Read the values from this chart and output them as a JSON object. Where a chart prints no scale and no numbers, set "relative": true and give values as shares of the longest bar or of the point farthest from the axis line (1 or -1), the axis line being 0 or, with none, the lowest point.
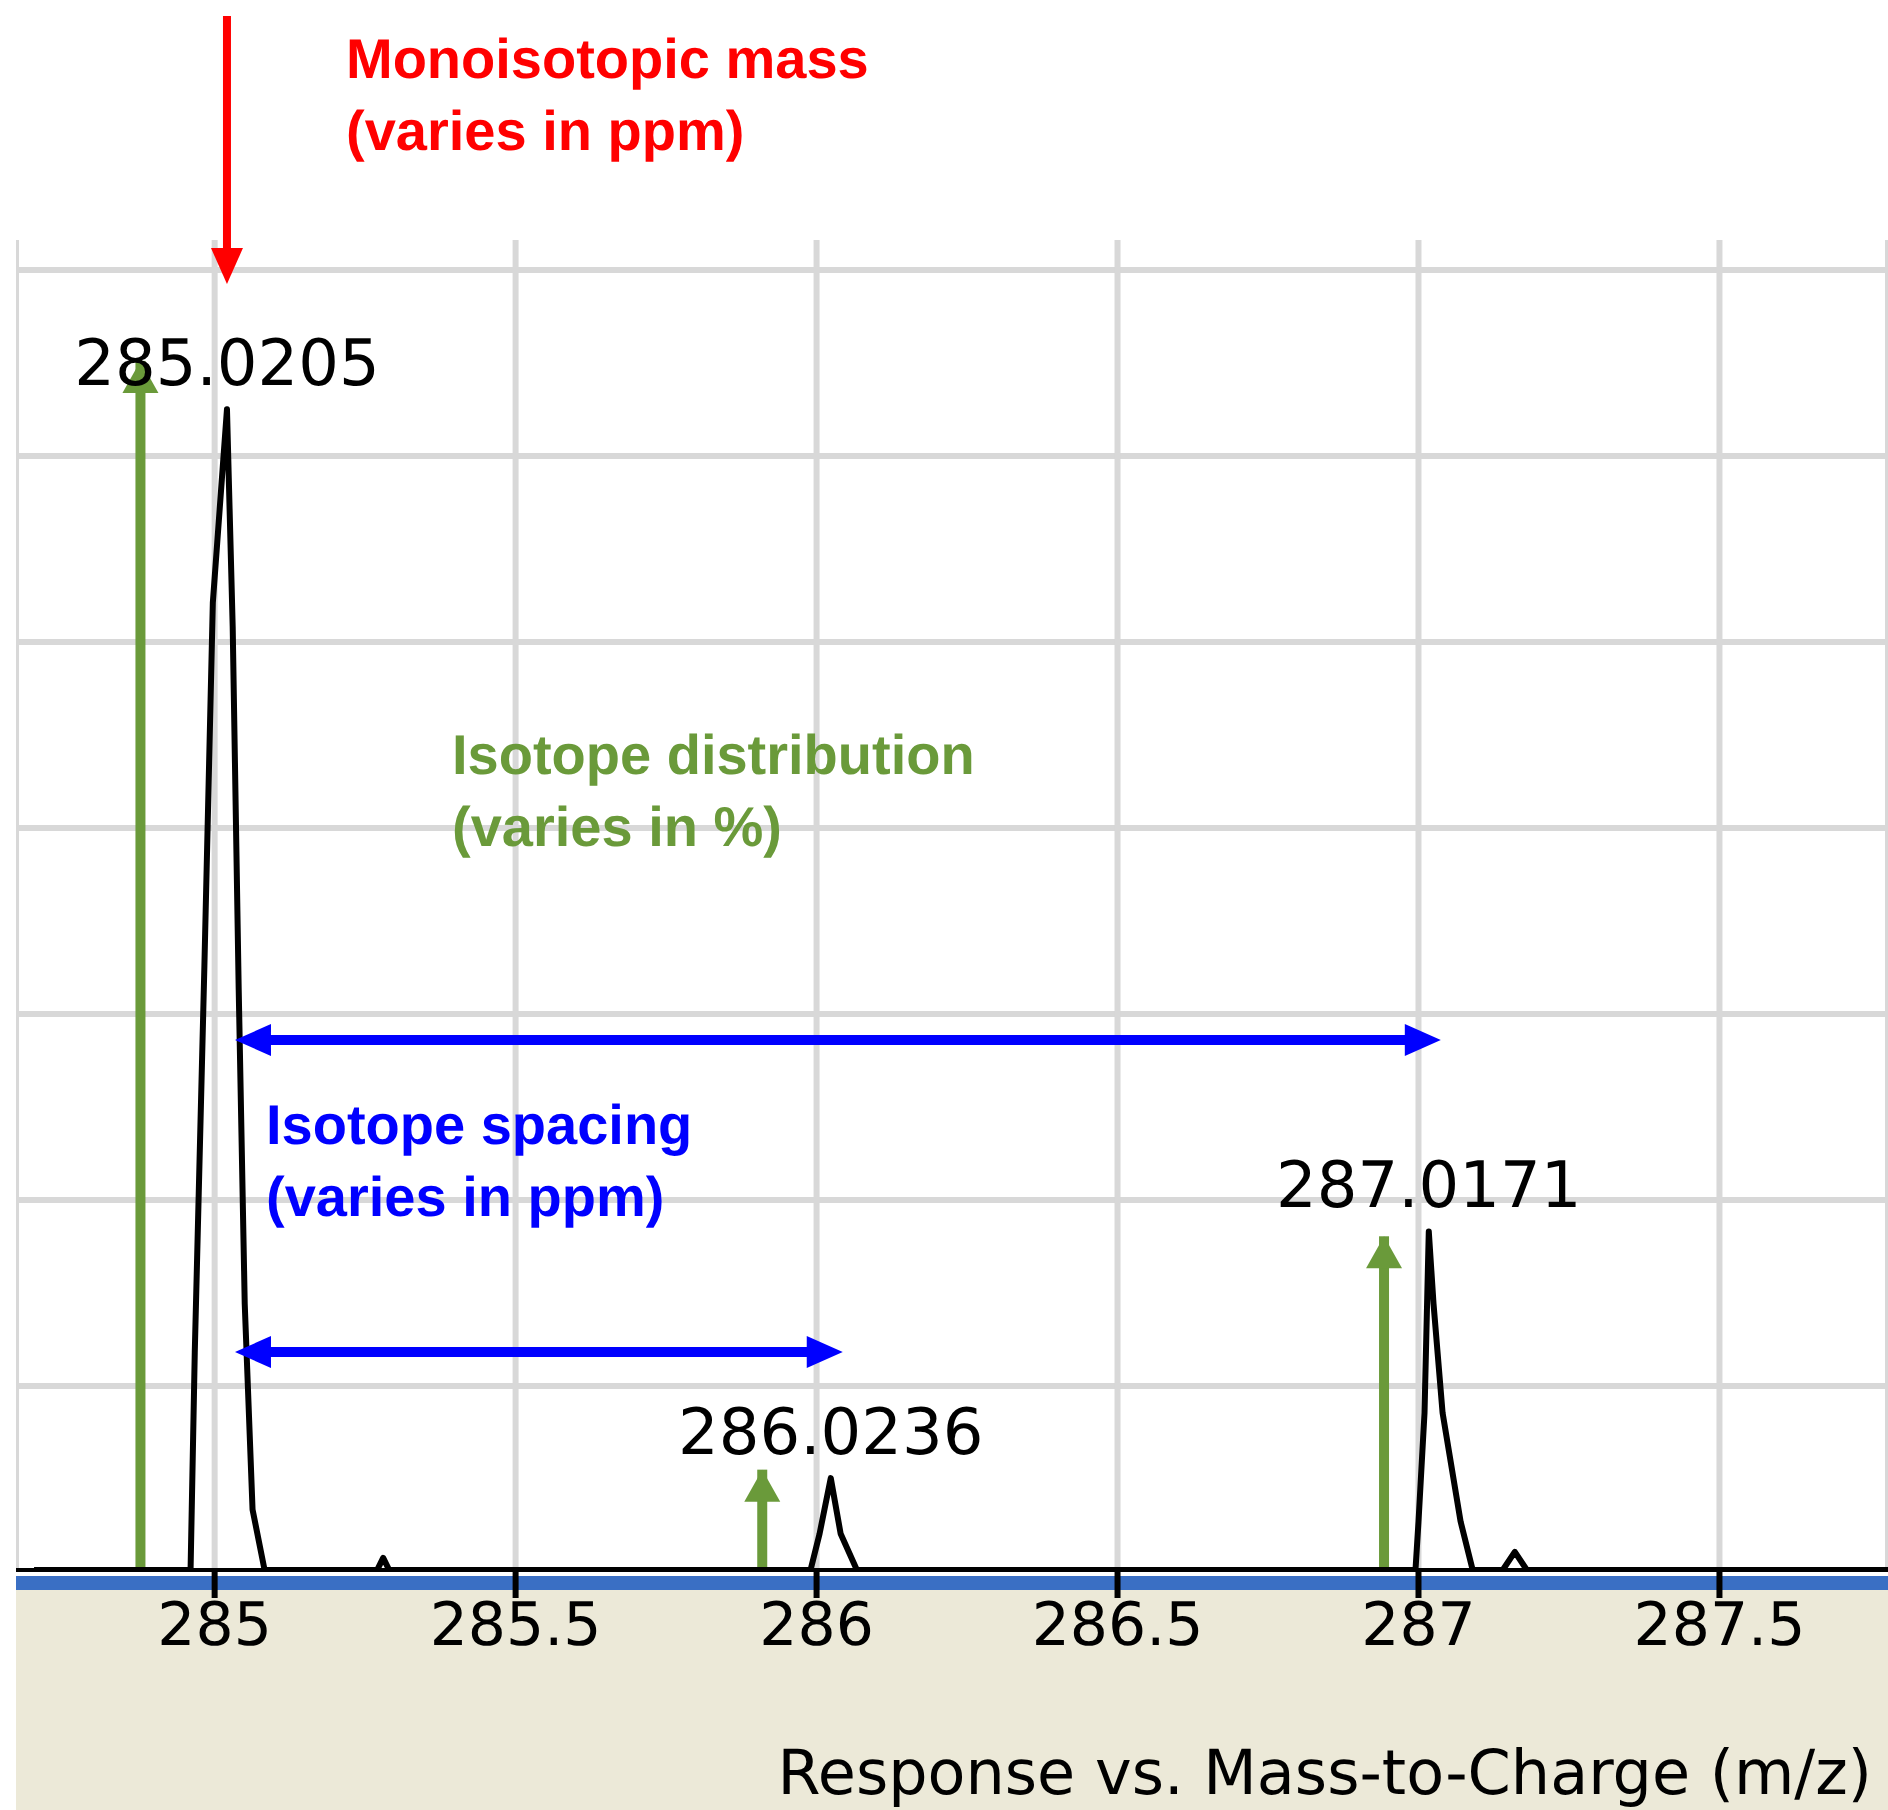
{
  "chart_data": {
    "type": "line",
    "relative": true,
    "xlabel": "Response vs. Mass-to-Charge (m/z)",
    "xlim": [
      284.67,
      287.78
    ],
    "xticks": [
      285,
      285.5,
      286,
      286.5,
      287,
      287.5
    ],
    "grid": true,
    "annotations": [
      "Monoisotopic mass\n(varies in ppm)",
      "Isotope distribution\n(varies in %)",
      "Isotope spacing\n(varies in ppm)",
      {
        "text": "285.0205",
        "x": 285.0205,
        "y": 0.96
      },
      {
        "text": "286.0236",
        "x": 286.0236,
        "y": 0.076
      },
      {
        "text": "287.0171",
        "x": 287.0171,
        "y": 0.28
      }
    ],
    "series": [
      {
        "color": "#000000",
        "x": [
          284.7,
          284.96,
          284.967,
          284.983,
          284.997,
          285.0205,
          285.03,
          285.04,
          285.05,
          285.063,
          285.083,
          285.27,
          285.28,
          285.29,
          285.99,
          286.005,
          286.0236,
          286.04,
          286.067,
          286.995,
          287.0,
          287.01,
          287.0171,
          287.025,
          287.04,
          287.07,
          287.09,
          287.14,
          287.16,
          287.18,
          287.78
        ],
        "values": [
          0,
          0,
          0.18,
          0.5,
          0.8,
          0.96,
          0.78,
          0.48,
          0.22,
          0.05,
          0,
          0,
          0.01,
          0,
          0,
          0.03,
          0.076,
          0.03,
          0,
          0,
          0.04,
          0.13,
          0.28,
          0.22,
          0.13,
          0.04,
          0,
          0,
          0.015,
          0,
          0
        ]
      },
      {
        "type": "bar",
        "color": "#6a9a3a",
        "x": [
          284.877,
          285.91,
          286.943
        ],
        "values": [
          1,
          0.083,
          0.276
        ]
      }
    ]
  }
}
